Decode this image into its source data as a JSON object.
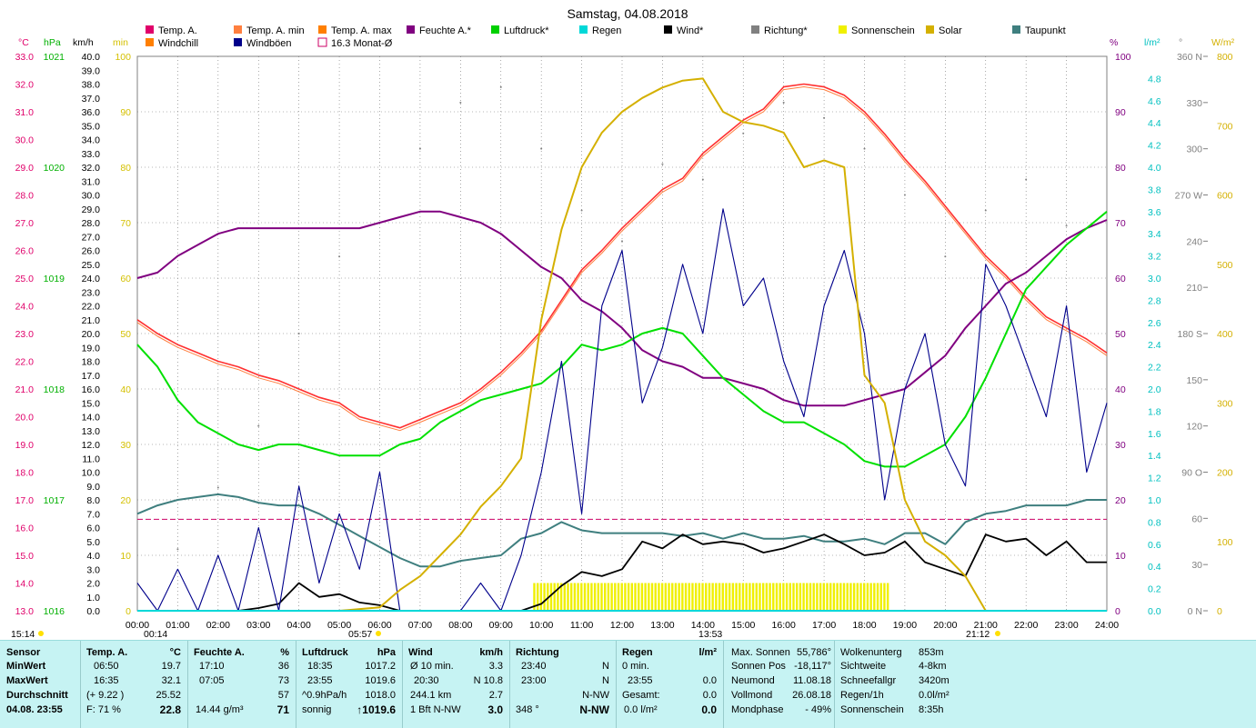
{
  "title": "Samstag, 04.08.2018",
  "legend": [
    {
      "label": "Temp. A.",
      "color": "#e0006a"
    },
    {
      "label": "Temp. A. min",
      "color": "#ff7f3f"
    },
    {
      "label": "Temp. A. max",
      "color": "#ff7f00"
    },
    {
      "label": "Feuchte A.*",
      "color": "#800080"
    },
    {
      "label": "Luftdruck*",
      "color": "#00d000"
    },
    {
      "label": "Regen",
      "color": "#00d8d8"
    },
    {
      "label": "Wind*",
      "color": "#000000"
    },
    {
      "label": "Richtung*",
      "color": "#808080"
    },
    {
      "label": "Sonnenschein",
      "color": "#f0f000"
    },
    {
      "label": "Solar",
      "color": "#d4b000"
    },
    {
      "label": "Taupunkt",
      "color": "#3f7f7f"
    },
    {
      "label": "Windchill",
      "color": "#ff7f00"
    },
    {
      "label": "Windböen",
      "color": "#00008b"
    },
    {
      "label": "16.3 Monat-Ø",
      "color": "#cc0066"
    }
  ],
  "axis_units": {
    "temp": "°C",
    "pressure": "hPa",
    "wind": "km/h",
    "sun": "min",
    "humidity": "%",
    "rain": "l/m²",
    "direction": "°",
    "solar": "W/m²"
  },
  "axes": {
    "temp_ticks": [
      "33.0",
      "32.0",
      "31.0",
      "30.0",
      "29.0",
      "28.0",
      "27.0",
      "26.0",
      "25.0",
      "24.0",
      "23.0",
      "22.0",
      "21.0",
      "20.0",
      "19.0",
      "18.0",
      "17.0",
      "16.0",
      "15.0",
      "14.0",
      "13.0"
    ],
    "pressure_ticks": [
      "1021",
      "1020",
      "1019",
      "1018",
      "1017",
      "1016"
    ],
    "wind_ticks": [
      "40.0",
      "39.0",
      "38.0",
      "37.0",
      "36.0",
      "35.0",
      "34.0",
      "33.0",
      "32.0",
      "31.0",
      "30.0",
      "29.0",
      "28.0",
      "27.0",
      "26.0",
      "25.0",
      "24.0",
      "23.0",
      "22.0",
      "21.0",
      "20.0",
      "19.0",
      "18.0",
      "17.0",
      "16.0",
      "15.0",
      "14.0",
      "13.0",
      "12.0",
      "11.0",
      "10.0",
      "9.0",
      "8.0",
      "7.0",
      "6.0",
      "5.0",
      "4.0",
      "3.0",
      "2.0",
      "1.0",
      "0.0"
    ],
    "sun_ticks": [
      "100",
      "90",
      "80",
      "70",
      "60",
      "50",
      "40",
      "30",
      "20",
      "10",
      "0"
    ],
    "humidity_ticks": [
      "100",
      "90",
      "80",
      "70",
      "60",
      "50",
      "40",
      "30",
      "20",
      "10",
      "0"
    ],
    "rain_ticks": [
      "4.8",
      "4.6",
      "4.4",
      "4.2",
      "4.0",
      "3.8",
      "3.6",
      "3.4",
      "3.2",
      "3.0",
      "2.8",
      "2.6",
      "2.4",
      "2.2",
      "2.0",
      "1.8",
      "1.6",
      "1.4",
      "1.2",
      "1.0",
      "0.8",
      "0.6",
      "0.4",
      "0.2",
      "0.0"
    ],
    "direction_ticks": [
      "360 N",
      "330",
      "300",
      "270 W",
      "240",
      "210",
      "180 S",
      "150",
      "120",
      "90 O",
      "60",
      "30",
      "0 N"
    ],
    "solar_ticks": [
      "800",
      "700",
      "600",
      "500",
      "400",
      "300",
      "200",
      "100",
      "0"
    ],
    "x_ticks": [
      "00:00",
      "01:00",
      "02:00",
      "03:00",
      "04:00",
      "05:00",
      "06:00",
      "07:00",
      "08:00",
      "09:00",
      "10:00",
      "11:00",
      "12:00",
      "13:00",
      "14:00",
      "15:00",
      "16:00",
      "17:00",
      "18:00",
      "19:00",
      "20:00",
      "21:00",
      "22:00",
      "23:00",
      "24:00"
    ]
  },
  "markers": {
    "moonrise_left": "15:14",
    "moon_mark": "00:14",
    "sunrise": "05:57",
    "solar_noon": "13:53",
    "sunset": "21:12"
  },
  "chart_data": {
    "type": "line",
    "x_unit": "hour",
    "monthly_avg_temp": 16.3,
    "series": [
      {
        "name": "Temp. A.",
        "axis": "temp",
        "x": [
          0,
          0.5,
          1,
          1.5,
          2,
          2.5,
          3,
          3.5,
          4,
          4.5,
          5,
          5.5,
          6,
          6.5,
          7,
          7.5,
          8,
          8.5,
          9,
          9.5,
          10,
          10.5,
          11,
          11.5,
          12,
          12.5,
          13,
          13.5,
          14,
          14.5,
          15,
          15.5,
          16,
          16.5,
          17,
          17.5,
          18,
          18.5,
          19,
          19.5,
          20,
          20.5,
          21,
          21.5,
          22,
          22.5,
          23,
          23.5,
          24
        ],
        "y": [
          23.5,
          23.0,
          22.6,
          22.3,
          22.0,
          21.8,
          21.5,
          21.3,
          21.0,
          20.7,
          20.5,
          20.0,
          19.8,
          19.6,
          19.9,
          20.2,
          20.5,
          21.0,
          21.6,
          22.3,
          23.1,
          24.2,
          25.3,
          26.0,
          26.8,
          27.5,
          28.2,
          28.6,
          29.5,
          30.1,
          30.7,
          31.1,
          31.9,
          32.0,
          31.9,
          31.6,
          31.0,
          30.2,
          29.3,
          28.5,
          27.6,
          26.7,
          25.8,
          25.1,
          24.3,
          23.6,
          23.2,
          22.8,
          22.3
        ]
      },
      {
        "name": "Feuchte A.*",
        "axis": "humidity",
        "x": [
          0,
          0.5,
          1,
          1.5,
          2,
          2.5,
          3,
          3.5,
          4,
          4.5,
          5,
          5.5,
          6,
          6.5,
          7,
          7.5,
          8,
          8.5,
          9,
          9.5,
          10,
          10.5,
          11,
          11.5,
          12,
          12.5,
          13,
          13.5,
          14,
          14.5,
          15,
          15.5,
          16,
          16.5,
          17,
          17.5,
          18,
          18.5,
          19,
          19.5,
          20,
          20.5,
          21,
          21.5,
          22,
          22.5,
          23,
          23.5,
          24
        ],
        "y": [
          60,
          61,
          64,
          66,
          68,
          69,
          69,
          69,
          69,
          69,
          69,
          69,
          70,
          71,
          72,
          72,
          71,
          70,
          68,
          65,
          62,
          60,
          56,
          54,
          51,
          47,
          45,
          44,
          42,
          42,
          41,
          40,
          38,
          37,
          37,
          37,
          38,
          39,
          40,
          43,
          46,
          51,
          55,
          59,
          61,
          64,
          67,
          69,
          70.5
        ]
      },
      {
        "name": "Luftdruck*",
        "axis": "pressure",
        "x": [
          0,
          0.5,
          1,
          1.5,
          2,
          2.5,
          3,
          3.5,
          4,
          4.5,
          5,
          5.5,
          6,
          6.5,
          7,
          7.5,
          8,
          8.5,
          9,
          9.5,
          10,
          10.5,
          11,
          11.5,
          12,
          12.5,
          13,
          13.5,
          14,
          14.5,
          15,
          15.5,
          16,
          16.5,
          17,
          17.5,
          18,
          18.5,
          19,
          19.5,
          20,
          20.5,
          21,
          21.5,
          22,
          22.5,
          23,
          23.5,
          24
        ],
        "y": [
          1018.4,
          1018.2,
          1017.9,
          1017.7,
          1017.6,
          1017.5,
          1017.45,
          1017.5,
          1017.5,
          1017.45,
          1017.4,
          1017.4,
          1017.4,
          1017.5,
          1017.55,
          1017.7,
          1017.8,
          1017.9,
          1017.95,
          1018.0,
          1018.05,
          1018.2,
          1018.4,
          1018.35,
          1018.4,
          1018.5,
          1018.55,
          1018.5,
          1018.3,
          1018.1,
          1017.95,
          1017.8,
          1017.7,
          1017.7,
          1017.6,
          1017.5,
          1017.35,
          1017.3,
          1017.3,
          1017.4,
          1017.5,
          1017.75,
          1018.1,
          1018.5,
          1018.9,
          1019.1,
          1019.3,
          1019.45,
          1019.6
        ]
      },
      {
        "name": "Taupunkt",
        "axis": "temp",
        "x": [
          0,
          0.5,
          1,
          1.5,
          2,
          2.5,
          3,
          3.5,
          4,
          4.5,
          5,
          5.5,
          6,
          6.5,
          7,
          7.5,
          8,
          8.5,
          9,
          9.5,
          10,
          10.5,
          11,
          11.5,
          12,
          12.5,
          13,
          13.5,
          14,
          14.5,
          15,
          15.5,
          16,
          16.5,
          17,
          17.5,
          18,
          18.5,
          19,
          19.5,
          20,
          20.5,
          21,
          21.5,
          22,
          22.5,
          23,
          23.5,
          24
        ],
        "y": [
          16.5,
          16.8,
          17.0,
          17.1,
          17.2,
          17.1,
          16.9,
          16.8,
          16.8,
          16.5,
          16.1,
          15.7,
          15.3,
          14.9,
          14.6,
          14.6,
          14.8,
          14.9,
          15.0,
          15.6,
          15.8,
          16.2,
          15.9,
          15.8,
          15.8,
          15.8,
          15.8,
          15.7,
          15.8,
          15.6,
          15.8,
          15.6,
          15.6,
          15.7,
          15.5,
          15.5,
          15.6,
          15.4,
          15.8,
          15.8,
          15.4,
          16.2,
          16.5,
          16.6,
          16.8,
          16.8,
          16.8,
          17.0,
          17.0
        ]
      },
      {
        "name": "Wind*",
        "axis": "wind",
        "x": [
          0,
          0.5,
          1,
          1.5,
          2,
          2.5,
          3,
          3.5,
          4,
          4.5,
          5,
          5.5,
          6,
          6.5,
          7,
          7.5,
          8,
          8.5,
          9,
          9.5,
          10,
          10.5,
          11,
          11.5,
          12,
          12.5,
          13,
          13.5,
          14,
          14.5,
          15,
          15.5,
          16,
          16.5,
          17,
          17.5,
          18,
          18.5,
          19,
          19.5,
          20,
          20.5,
          21,
          21.5,
          22,
          22.5,
          23,
          23.5,
          24
        ],
        "y": [
          0,
          0,
          0,
          0,
          0,
          0,
          0.2,
          0.5,
          2.0,
          1.0,
          1.2,
          0.6,
          0.4,
          0,
          0,
          0,
          0,
          0,
          0,
          0,
          0.5,
          1.8,
          2.8,
          2.5,
          3.0,
          5.0,
          4.5,
          5.5,
          4.8,
          5.0,
          4.8,
          4.2,
          4.5,
          5.0,
          5.5,
          4.8,
          4.0,
          4.2,
          5.0,
          3.5,
          3.0,
          2.5,
          5.5,
          5.0,
          5.2,
          4.0,
          5.0,
          3.5,
          3.5
        ]
      },
      {
        "name": "Windböen",
        "axis": "wind",
        "x": [
          0,
          0.5,
          1,
          1.5,
          2,
          2.5,
          3,
          3.5,
          4,
          4.5,
          5,
          5.5,
          6,
          6.5,
          7,
          7.5,
          8,
          8.5,
          9,
          9.5,
          10,
          10.5,
          11,
          11.5,
          12,
          12.5,
          13,
          13.5,
          14,
          14.5,
          15,
          15.5,
          16,
          16.5,
          17,
          17.5,
          18,
          18.5,
          19,
          19.5,
          20,
          20.5,
          21,
          21.5,
          22,
          22.5,
          23,
          23.5,
          24
        ],
        "y": [
          2,
          0,
          3,
          0,
          4,
          0,
          6,
          0,
          9,
          2,
          7,
          3,
          10,
          0,
          0,
          0,
          0,
          2,
          0,
          4,
          10,
          18,
          7,
          22,
          26,
          15,
          19,
          25,
          20,
          29,
          22,
          24,
          18,
          14,
          22,
          26,
          20,
          8,
          16,
          20,
          12,
          9,
          25,
          22,
          18,
          14,
          22,
          10,
          15
        ]
      },
      {
        "name": "Solar",
        "axis": "solar",
        "x": [
          0,
          5,
          6,
          6.5,
          7,
          7.5,
          8,
          8.5,
          9,
          9.5,
          10,
          10.5,
          11,
          11.5,
          12,
          12.5,
          13,
          13.5,
          14,
          14.5,
          15,
          15.5,
          16,
          16.5,
          17,
          17.5,
          18,
          18.5,
          19,
          19.5,
          20,
          20.5,
          21,
          21.5,
          24
        ],
        "y": [
          0,
          0,
          5,
          30,
          50,
          80,
          110,
          150,
          180,
          220,
          420,
          550,
          640,
          690,
          720,
          740,
          755,
          765,
          768,
          720,
          705,
          700,
          690,
          640,
          650,
          640,
          340,
          300,
          160,
          100,
          80,
          50,
          0,
          0,
          0
        ]
      },
      {
        "name": "Richtung*",
        "axis": "direction",
        "x": [
          1,
          2,
          3,
          4,
          5,
          6,
          7,
          8,
          9,
          10,
          11,
          12,
          13,
          14,
          15,
          16,
          17,
          18,
          19,
          20,
          21,
          22,
          23
        ],
        "y": [
          40,
          80,
          120,
          180,
          230,
          60,
          300,
          330,
          340,
          300,
          260,
          240,
          290,
          280,
          310,
          330,
          320,
          300,
          270,
          230,
          260,
          280,
          250
        ]
      }
    ],
    "sunshine_bars": {
      "axis": "sun",
      "start_hour": 9.8,
      "end_hour": 18.6,
      "value": 5
    }
  },
  "stats": {
    "sensor": {
      "header": "Sensor",
      "rows": [
        "MinWert",
        "MaxWert",
        "Durchschnitt",
        "04.08. 23:55"
      ]
    },
    "temp": {
      "header": "Temp. A.",
      "unit": "°C",
      "rows": [
        [
          "06:50",
          "19.7"
        ],
        [
          "16:35",
          "32.1"
        ],
        [
          "(+ 9.22 )",
          "25.52"
        ],
        [
          "F: 71 %",
          "22.8"
        ]
      ]
    },
    "humidity": {
      "header": "Feuchte A.",
      "unit": "%",
      "rows": [
        [
          "17:10",
          "36"
        ],
        [
          "07:05",
          "73"
        ],
        [
          "",
          "57"
        ],
        [
          "14.44 g/m³",
          "71"
        ]
      ]
    },
    "pressure": {
      "header": "Luftdruck",
      "unit": "hPa",
      "rows": [
        [
          "18:35",
          "1017.2"
        ],
        [
          "23:55",
          "1019.6"
        ],
        [
          "^0.9hPa/h",
          "1018.0"
        ],
        [
          "sonnig",
          "↑1019.6"
        ]
      ]
    },
    "wind": {
      "header": "Wind",
      "unit": "km/h",
      "rows": [
        [
          "Ø 10 min.",
          "3.3"
        ],
        [
          "20:30",
          "N 10.8"
        ],
        [
          "244.1 km",
          "2.7"
        ],
        [
          "1 Bft N-NW",
          "3.0"
        ]
      ]
    },
    "direction": {
      "header": "Richtung",
      "rows": [
        [
          "23:40",
          "N"
        ],
        [
          "23:00",
          "N"
        ],
        [
          "",
          "N-NW"
        ],
        [
          "348 °",
          "N-NW"
        ]
      ]
    },
    "rain": {
      "header": "Regen",
      "unit": "l/m²",
      "rows": [
        [
          "0 min.",
          ""
        ],
        [
          "23:55",
          "0.0"
        ],
        [
          "Gesamt:",
          "0.0"
        ],
        [
          "0.0 l/m²",
          "0.0"
        ]
      ]
    },
    "astro": {
      "rows": [
        [
          "Max. Sonnen",
          "55,786°"
        ],
        [
          "Sonnen Pos",
          "-18,117°"
        ],
        [
          "Neumond",
          "11.08.18"
        ],
        [
          "Vollmond",
          "26.08.18"
        ],
        [
          "Mondphase",
          "- 49%"
        ]
      ]
    },
    "misc": {
      "rows": [
        [
          "Wolkenunterg",
          "853m"
        ],
        [
          "Sichtweite",
          "4-8km"
        ],
        [
          "Schneefallgr",
          "3420m"
        ],
        [
          "Regen/1h",
          "0.0l/m²"
        ],
        [
          "Sonnenschein",
          "8:35h"
        ]
      ]
    }
  }
}
